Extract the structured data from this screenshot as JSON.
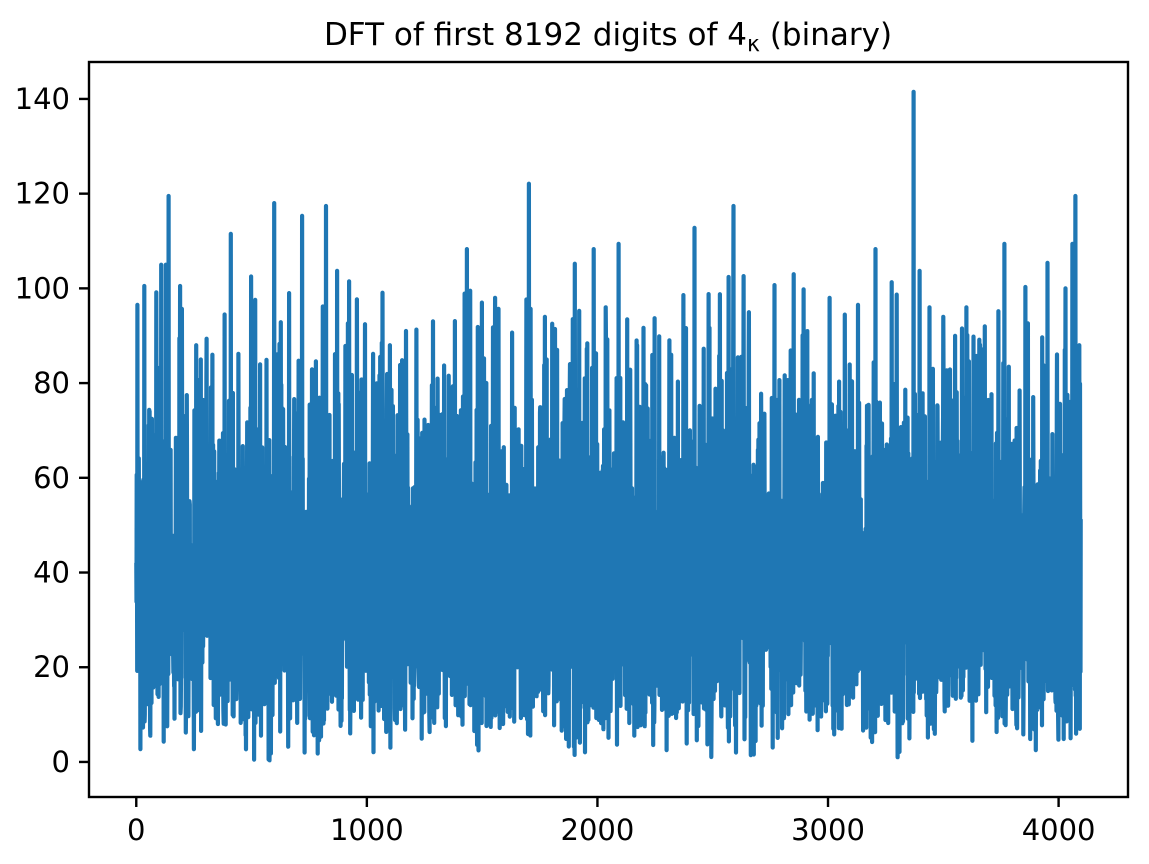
{
  "figure": {
    "background_color": "#ffffff",
    "title_prefix": "DFT of first 8192 digits of 4",
    "title_subscript": "κ",
    "title_suffix": " (binary)"
  },
  "chart_data": {
    "type": "line",
    "title": "DFT of first 8192 digits of 4κ (binary)",
    "xlabel": "",
    "ylabel": "",
    "grid": false,
    "legend": null,
    "line_color": "#1f77b4",
    "axis_color": "#000000",
    "x_range": [
      0,
      4096
    ],
    "n_points": 4097,
    "xlim": [
      -205,
      4301
    ],
    "ylim": [
      -7.4,
      147.8
    ],
    "xticks": [
      0,
      1000,
      2000,
      3000,
      4000
    ],
    "yticks": [
      0,
      20,
      40,
      60,
      80,
      100,
      120,
      140
    ],
    "series_description": "Magnitude spectrum of a binary digit sequence: dense noise band roughly 15-65 with mean ~39, isolated spikes up to 141.5, occasional dips near 0",
    "noise_model": {
      "distribution": "rayleigh",
      "sigma": 31,
      "seed": 42,
      "resample_above": 100,
      "min": 0.3
    },
    "max_point": [
      3371,
      141.5
    ],
    "major_peaks": [
      [
        5,
        96.5
      ],
      [
        35,
        100.5
      ],
      [
        108,
        105.0
      ],
      [
        128,
        105.0
      ],
      [
        140,
        119.5
      ],
      [
        190,
        100.5
      ],
      [
        260,
        88.0
      ],
      [
        330,
        86.0
      ],
      [
        410,
        111.5
      ],
      [
        498,
        102.5
      ],
      [
        598,
        118.0
      ],
      [
        663,
        99.0
      ],
      [
        719,
        115.3
      ],
      [
        823,
        117.4
      ],
      [
        871,
        103.7
      ],
      [
        923,
        101.5
      ],
      [
        957,
        97.7
      ],
      [
        1065,
        88.5
      ],
      [
        1100,
        88.0
      ],
      [
        1170,
        91.0
      ],
      [
        1215,
        91.3
      ],
      [
        1434,
        108.3
      ],
      [
        1499,
        97.0
      ],
      [
        1556,
        98.0
      ],
      [
        1703,
        122.1
      ],
      [
        1772,
        94.0
      ],
      [
        1902,
        105.2
      ],
      [
        1984,
        108.3
      ],
      [
        2036,
        96.0
      ],
      [
        2092,
        109.4
      ],
      [
        2170,
        89.0
      ],
      [
        2248,
        93.7
      ],
      [
        2320,
        86.0
      ],
      [
        2421,
        112.8
      ],
      [
        2482,
        98.8
      ],
      [
        2569,
        102.4
      ],
      [
        2590,
        117.4
      ],
      [
        2634,
        102.6
      ],
      [
        2768,
        100.7
      ],
      [
        2851,
        103.0
      ],
      [
        2894,
        99.8
      ],
      [
        3007,
        98.0
      ],
      [
        3130,
        96.5
      ],
      [
        3206,
        108.3
      ],
      [
        3276,
        101.3
      ],
      [
        3371,
        141.5
      ],
      [
        3397,
        103.7
      ],
      [
        3440,
        96.0
      ],
      [
        3500,
        94.0
      ],
      [
        3600,
        96.0
      ],
      [
        3680,
        92.0
      ],
      [
        3765,
        109.4
      ],
      [
        3856,
        100.3
      ],
      [
        3952,
        105.4
      ],
      [
        4030,
        100.0
      ],
      [
        4060,
        109.4
      ],
      [
        4073,
        119.5
      ],
      [
        4090,
        88.0
      ]
    ],
    "major_dips": [
      [
        60,
        7.0
      ],
      [
        511,
        0.5
      ],
      [
        730,
        2.0
      ],
      [
        1102,
        3.0
      ],
      [
        1450,
        12.0
      ],
      [
        1901,
        1.5
      ],
      [
        2300,
        2.5
      ],
      [
        2601,
        2.0
      ],
      [
        3302,
        1.0
      ],
      [
        3901,
        2.5
      ],
      [
        4092,
        7.0
      ]
    ]
  }
}
